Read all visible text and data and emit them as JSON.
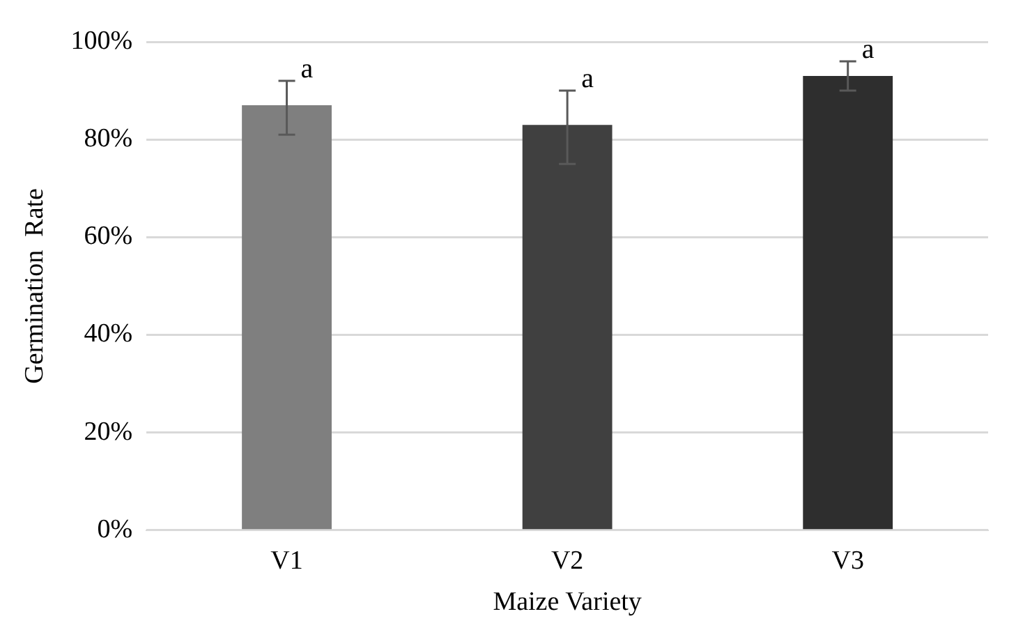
{
  "chart_data": {
    "type": "bar",
    "xlabel": "Maize Variety",
    "ylabel": "Germination  Rate",
    "categories": [
      "V1",
      "V2",
      "V3"
    ],
    "values": [
      87,
      83,
      93
    ],
    "errors": [
      [
        81,
        92
      ],
      [
        75,
        90
      ],
      [
        90,
        96
      ]
    ],
    "colors": [
      "#7f7f7f",
      "#404040",
      "#2e2e2e"
    ],
    "ylim": [
      0,
      100
    ],
    "yticks": [
      {
        "value": 0,
        "label": "0%"
      },
      {
        "value": 20,
        "label": "20%"
      },
      {
        "value": 40,
        "label": "40%"
      },
      {
        "value": 60,
        "label": "60%"
      },
      {
        "value": 80,
        "label": "80%"
      },
      {
        "value": 100,
        "label": "100%"
      }
    ],
    "grid": "y",
    "annotations": [
      {
        "text": "a",
        "x": "V1",
        "y": 92
      },
      {
        "text": "a",
        "x": "V2",
        "y": 90
      },
      {
        "text": "a",
        "x": "V3",
        "y": 96
      }
    ]
  }
}
